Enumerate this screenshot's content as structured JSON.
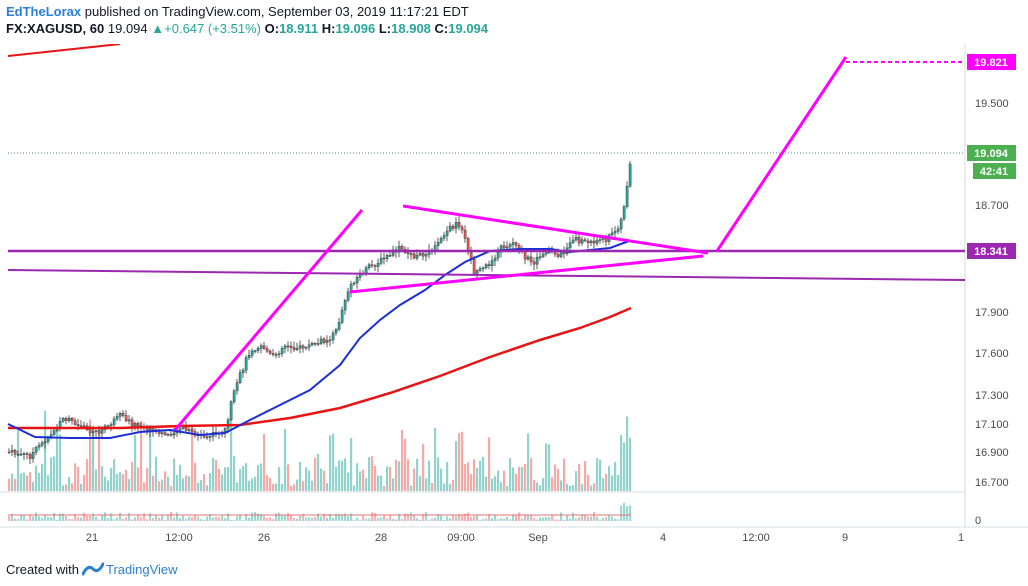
{
  "header": {
    "author": "EdTheLorax",
    "published": " published on TradingView.com, September 03, 2019 11:17:21 EDT",
    "symbol": "FX:XAGUSD, 60",
    "last": "19.094",
    "change": "+0.647 (+3.51%)",
    "o_label": "O:",
    "o_value": "18.911",
    "h_label": "H:",
    "h_value": "19.096",
    "l_label": "L:",
    "l_value": "18.908",
    "c_label": "C:",
    "c_value": "19.094"
  },
  "price_axis": {
    "ticks": [
      "19.500",
      "18.700",
      "17.900",
      "17.600",
      "17.300",
      "17.100",
      "16.900",
      "16.700",
      "0"
    ],
    "tags": {
      "target": "19.821",
      "current": "19.094",
      "countdown": "42:41",
      "support": "18.341"
    }
  },
  "time_axis": {
    "labels": [
      "21",
      "12:00",
      "26",
      "28",
      "09:00",
      "Sep",
      "4",
      "12:00",
      "9",
      "1"
    ]
  },
  "colors": {
    "magenta": "#ff00ff",
    "purple": "#9c27b0",
    "red_ma": "#e81313",
    "blue_ma": "#1c2fd6",
    "up": "#26a69a",
    "down": "#ef5350",
    "tag_green": "#4caf50"
  },
  "footer": {
    "created_with": "Created with",
    "brand": "TradingView"
  }
}
